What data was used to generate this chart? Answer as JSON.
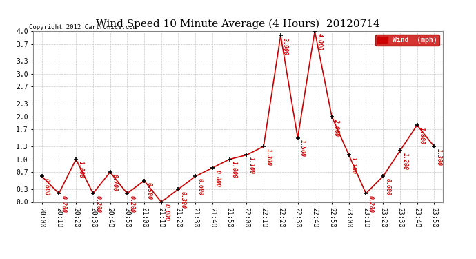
{
  "title": "Wind Speed 10 Minute Average (4 Hours)  20120714",
  "copyright": "Copyright 2012 Cartronics.com",
  "legend_label": "Wind  (mph)",
  "ylim": [
    0.0,
    4.0
  ],
  "yticks": [
    0.0,
    0.3,
    0.7,
    1.0,
    1.3,
    1.7,
    2.0,
    2.3,
    2.7,
    3.0,
    3.3,
    3.7,
    4.0
  ],
  "x_labels": [
    "20:00",
    "20:10",
    "20:20",
    "20:30",
    "20:40",
    "20:50",
    "21:00",
    "21:10",
    "21:20",
    "21:30",
    "21:40",
    "21:50",
    "22:00",
    "22:10",
    "22:20",
    "22:30",
    "22:40",
    "22:50",
    "23:00",
    "23:10",
    "23:20",
    "23:30",
    "23:40",
    "23:50"
  ],
  "y_vals": [
    0.6,
    0.2,
    1.0,
    0.2,
    0.7,
    0.2,
    0.5,
    0.0,
    0.3,
    0.6,
    0.8,
    1.0,
    1.1,
    1.3,
    3.9,
    1.5,
    4.0,
    2.0,
    1.1,
    0.2,
    0.6,
    1.2,
    1.8,
    1.3
  ],
  "line_color": "#cc0000",
  "marker_color": "#000000",
  "label_color": "#cc0000",
  "background_color": "#ffffff",
  "grid_color": "#c8c8c8",
  "title_fontsize": 11,
  "legend_bg": "#cc0000",
  "legend_fg": "#ffffff"
}
